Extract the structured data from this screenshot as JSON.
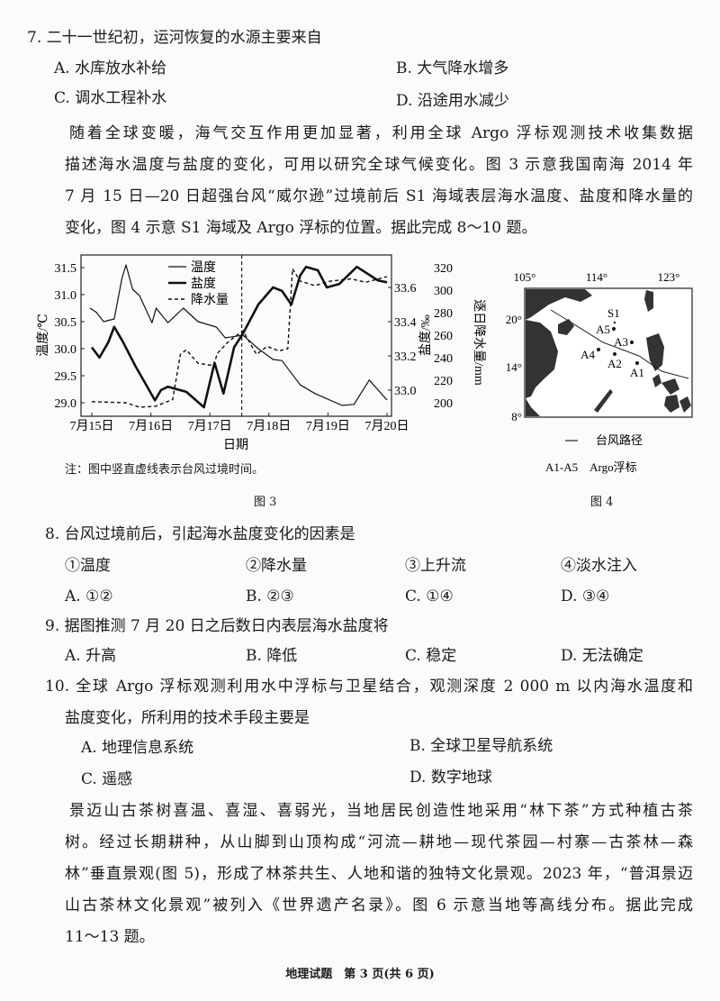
{
  "q7": {
    "stem": "7. 二十一世纪初，运河恢复的水源主要来自",
    "options": [
      "A. 水库放水补给",
      "B. 大气降水增多",
      "C. 调水工程补水",
      "D. 沿途用水减少"
    ]
  },
  "passage1": [
    "随着全球变暖，海气交互作用更加显著，利用全球 Argo 浮标观测技术收集数据",
    "描述海水温度与盐度的变化，可用以研究全球气候变化。图 3 示意我国南海 2014 年",
    "7 月 15 日—20 日超强台风“威尔逊”过境前后 S1 海域表层海水温度、盐度和降水量的",
    "变化，图 4 示意 S1 海域及 Argo 浮标的位置。据此完成 8～10 题。"
  ],
  "chart_data": {
    "type": "line",
    "xlabel": "日期",
    "x_ticks": [
      "7月15日",
      "7月16日",
      "7月17日",
      "7月18日",
      "7月19日",
      "7月20日"
    ],
    "xlim": [
      15,
      20
    ],
    "y_left": {
      "label": "温度/℃",
      "ticks": [
        "31.5",
        "31.0",
        "30.5",
        "30.0",
        "29.5",
        "29.0"
      ],
      "range": [
        29.0,
        31.5
      ]
    },
    "y_right1": {
      "label": "盐度/‰",
      "ticks": [
        "33.6",
        "33.4",
        "33.2",
        "33.0"
      ],
      "range": [
        33.0,
        33.6
      ]
    },
    "y_right2": {
      "label": "逐日降水量/mm",
      "ticks": [
        "320",
        "300",
        "280",
        "260",
        "240",
        "220",
        "200"
      ],
      "range": [
        200,
        320
      ]
    },
    "typhoon_day": 17.54,
    "series": [
      {
        "name": "温度",
        "axis": "left",
        "style": "thin",
        "x": [
          14.97,
          15.08,
          15.2,
          15.38,
          15.51,
          15.58,
          15.69,
          15.81,
          16.02,
          16.09,
          16.29,
          16.55,
          16.8,
          17.11,
          17.26,
          17.56,
          17.82,
          18.07,
          18.22,
          18.53,
          18.78,
          19.24,
          19.44,
          19.7,
          20.0
        ],
        "y": [
          30.75,
          30.67,
          30.5,
          30.55,
          31.3,
          31.55,
          31.1,
          30.98,
          30.48,
          30.75,
          30.48,
          30.75,
          30.5,
          30.4,
          30.2,
          30.25,
          30.0,
          29.8,
          29.78,
          29.33,
          29.17,
          28.95,
          28.97,
          29.42,
          29.05
        ]
      },
      {
        "name": "盐度",
        "axis": "right1",
        "style": "thick",
        "x": [
          15.0,
          15.13,
          15.28,
          15.38,
          15.53,
          15.74,
          16.07,
          16.17,
          16.29,
          16.6,
          16.9,
          17.08,
          17.23,
          17.41,
          17.56,
          17.82,
          18.07,
          18.22,
          18.38,
          18.53,
          18.63,
          18.83,
          18.98,
          19.19,
          19.49,
          19.85,
          20.0
        ],
        "y": [
          33.25,
          33.19,
          33.28,
          33.37,
          33.28,
          33.14,
          32.94,
          33.0,
          33.02,
          32.99,
          32.9,
          33.16,
          32.98,
          33.25,
          33.33,
          33.5,
          33.6,
          33.58,
          33.5,
          33.67,
          33.72,
          33.7,
          33.6,
          33.62,
          33.72,
          33.64,
          33.63
        ]
      },
      {
        "name": "降水量",
        "axis": "right2",
        "style": "dashed",
        "x": [
          15.0,
          15.58,
          15.81,
          16.09,
          16.37,
          16.5,
          16.6,
          16.8,
          17.06,
          17.13,
          17.31,
          17.56,
          17.79,
          17.97,
          18.17,
          18.32,
          18.4,
          18.53,
          18.78,
          19.04,
          19.39,
          19.64,
          20.0
        ],
        "y": [
          201,
          200,
          196,
          197,
          203,
          243,
          247,
          235,
          233,
          244,
          254,
          264,
          243,
          250,
          246,
          248,
          319,
          308,
          304,
          308,
          310,
          307,
          312
        ]
      }
    ]
  },
  "fig3": {
    "note": "注：图中竖直虚线表示台风过境时间。",
    "caption": "图 3"
  },
  "fig4": {
    "lon": [
      "105°",
      "114°",
      "123°"
    ],
    "lat": [
      "20°",
      "14°",
      "8°"
    ],
    "points": [
      "S1",
      "A5",
      "A3",
      "A4",
      "A2",
      "A1"
    ],
    "legend_line": "台风路径",
    "legend_pts": "A1-A5　Argo浮标",
    "caption": "图 4"
  },
  "q8": {
    "stem": "8. 台风过境前后，引起海水盐度变化的因素是",
    "items": [
      "①温度",
      "②降水量",
      "③上升流",
      "④淡水注入"
    ],
    "options": [
      "A. ①②",
      "B. ②③",
      "C. ①④",
      "D. ③④"
    ]
  },
  "q9": {
    "stem": "9. 据图推测 7 月 20 日之后数日内表层海水盐度将",
    "options": [
      "A. 升高",
      "B. 降低",
      "C. 稳定",
      "D. 无法确定"
    ]
  },
  "q10": {
    "stem": [
      "10. 全球 Argo 浮标观测利用水中浮标与卫星结合，观测深度 2 000 m 以内海水温度和",
      "盐度变化，所利用的技术手段主要是"
    ],
    "options": [
      "A. 地理信息系统",
      "B. 全球卫星导航系统",
      "C. 遥感",
      "D. 数字地球"
    ]
  },
  "passage2": [
    "景迈山古茶树喜温、喜湿、喜弱光，当地居民创造性地采用“林下茶”方式种植古茶",
    "树。经过长期耕种，从山脚到山顶构成“河流—耕地—现代茶园—村寨—古茶林—森",
    "林”垂直景观(图 5)，形成了林茶共生、人地和谐的独特文化景观。2023 年，“普洱景迈",
    "山古茶林文化景观”被列入《世界遗产名录》。图 6 示意当地等高线分布。据此完成",
    "11～13 题。"
  ],
  "footer": "地理试题　第 3 页(共 6 页)"
}
